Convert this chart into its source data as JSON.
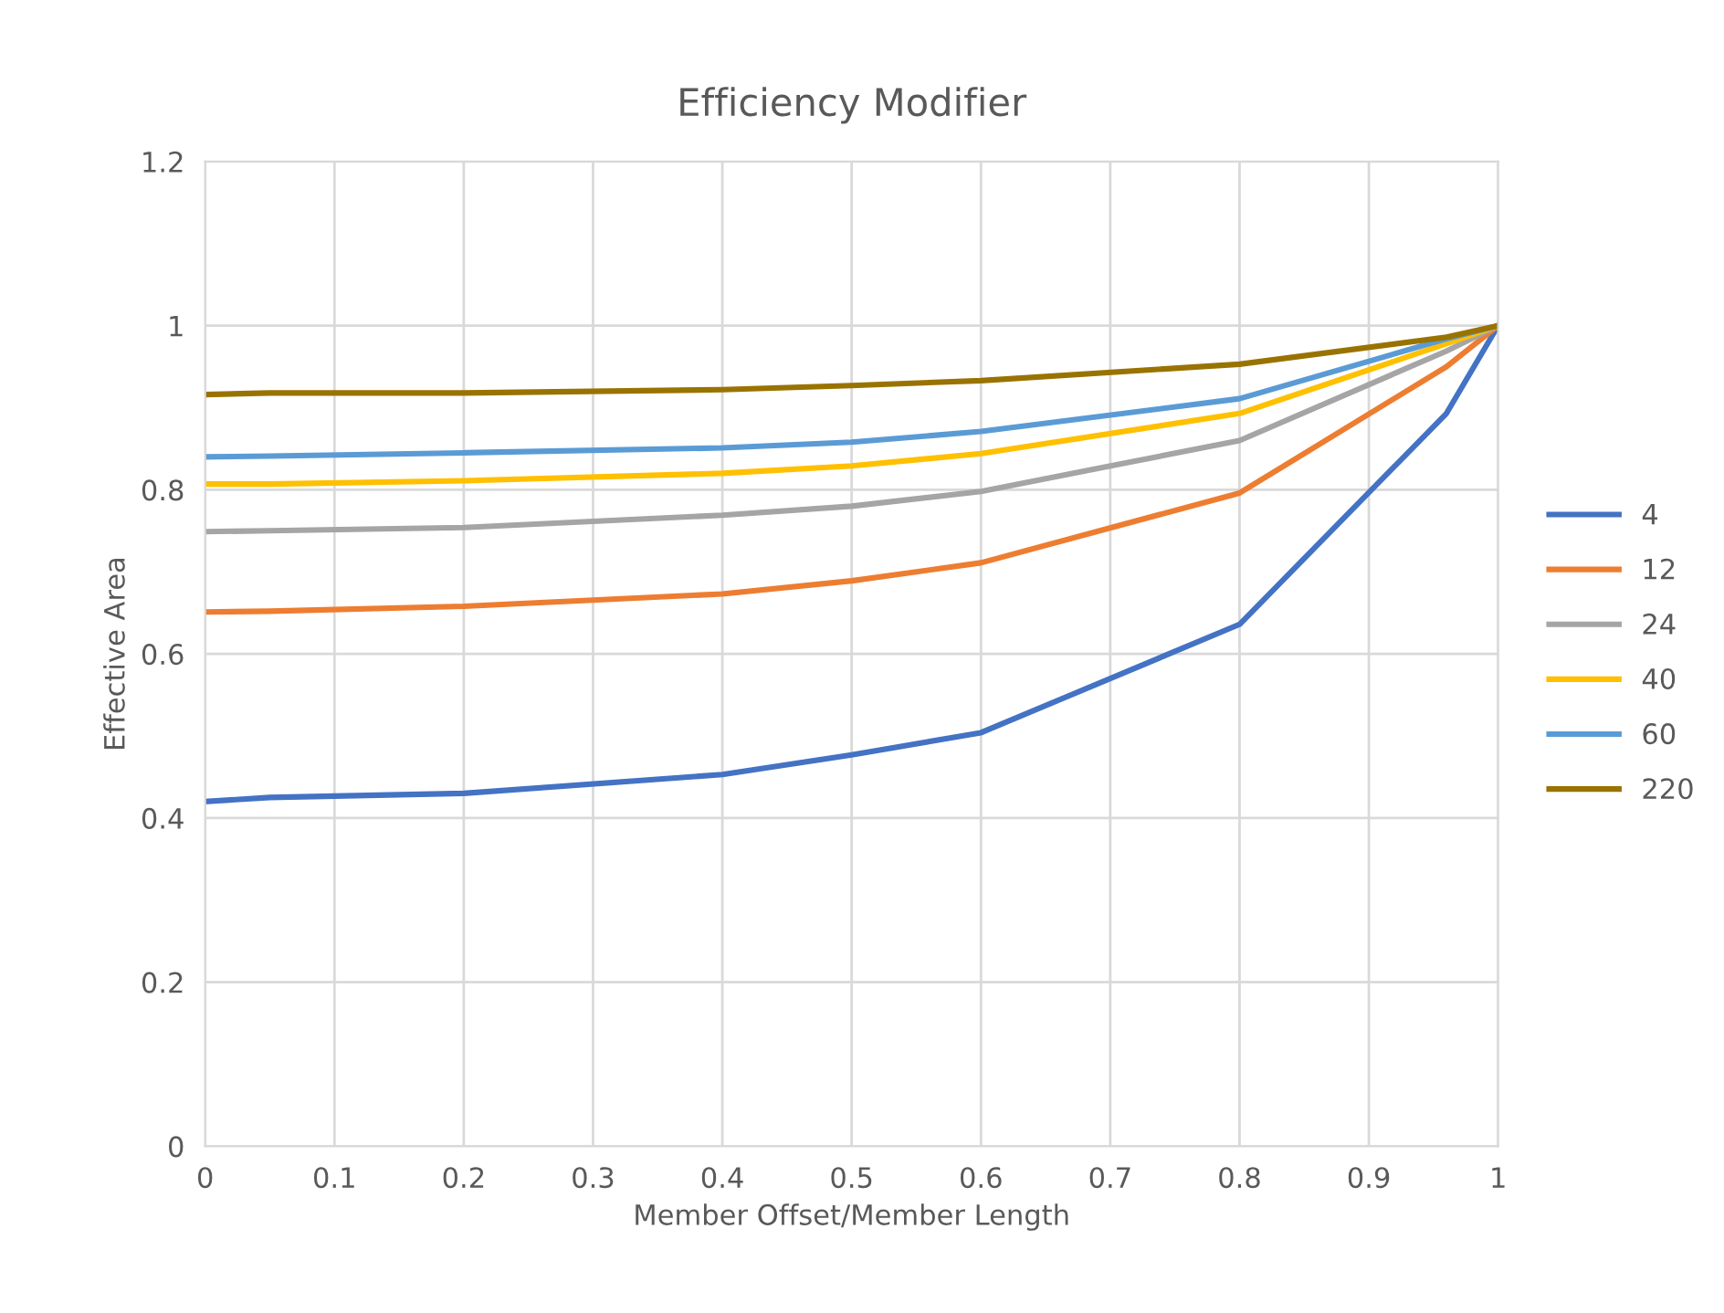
{
  "chart_data": {
    "type": "line",
    "title": "Efficiency Modifier",
    "xlabel": "Member Offset/Member Length",
    "ylabel": "Effective Area",
    "x": [
      0,
      0.05,
      0.2,
      0.4,
      0.5,
      0.6,
      0.8,
      0.96,
      1
    ],
    "series": [
      {
        "name": "4",
        "color": "#4472c4",
        "values": [
          0.42,
          0.425,
          0.43,
          0.453,
          0.477,
          0.504,
          0.636,
          0.893,
          1.0
        ]
      },
      {
        "name": "12",
        "color": "#ed7d31",
        "values": [
          0.651,
          0.652,
          0.658,
          0.673,
          0.689,
          0.711,
          0.796,
          0.95,
          1.0
        ]
      },
      {
        "name": "24",
        "color": "#a5a5a5",
        "values": [
          0.749,
          0.75,
          0.754,
          0.769,
          0.78,
          0.798,
          0.86,
          0.969,
          1.0
        ]
      },
      {
        "name": "40",
        "color": "#ffc000",
        "values": [
          0.807,
          0.807,
          0.811,
          0.82,
          0.829,
          0.844,
          0.893,
          0.978,
          1.0
        ]
      },
      {
        "name": "60",
        "color": "#5b9bd5",
        "values": [
          0.84,
          0.841,
          0.845,
          0.851,
          0.858,
          0.871,
          0.911,
          0.984,
          1.0
        ]
      },
      {
        "name": "220",
        "color": "#997300",
        "values": [
          0.916,
          0.918,
          0.918,
          0.922,
          0.927,
          0.933,
          0.953,
          0.986,
          1.0
        ]
      }
    ],
    "xlim": [
      0,
      1
    ],
    "xticks": [
      0,
      0.1,
      0.2,
      0.3,
      0.4,
      0.5,
      0.6,
      0.7,
      0.8,
      0.9,
      1
    ],
    "ylim": [
      0,
      1.2
    ],
    "yticks": [
      0,
      0.2,
      0.4,
      0.6,
      0.8,
      1,
      1.2
    ],
    "grid": true,
    "legend": "right",
    "marker": "none",
    "line_style": "solid"
  }
}
